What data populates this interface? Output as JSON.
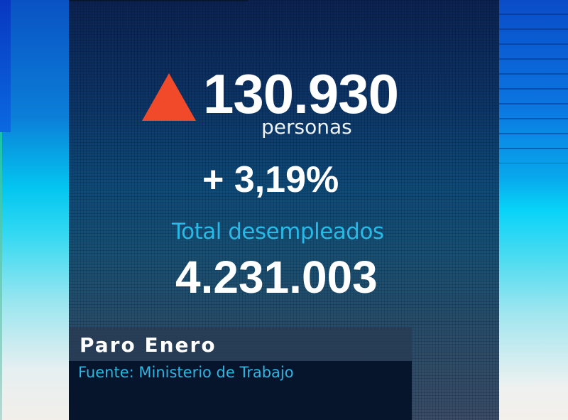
{
  "graphic": {
    "change": {
      "direction_icon": "triangle-up",
      "value": "130.930",
      "unit": "personas",
      "percent": "+ 3,19%"
    },
    "total": {
      "label": "Total desempleados",
      "value": "4.231.003"
    },
    "lower_third": {
      "title": "Paro Enero",
      "source": "Fuente: Ministerio de Trabajo"
    }
  },
  "colors": {
    "triangle": "#f04a2a",
    "label_cyan": "#29b9e6",
    "source_cyan": "#2fb4df",
    "panel_dark": "#0c2250",
    "text_white": "#ffffff"
  }
}
